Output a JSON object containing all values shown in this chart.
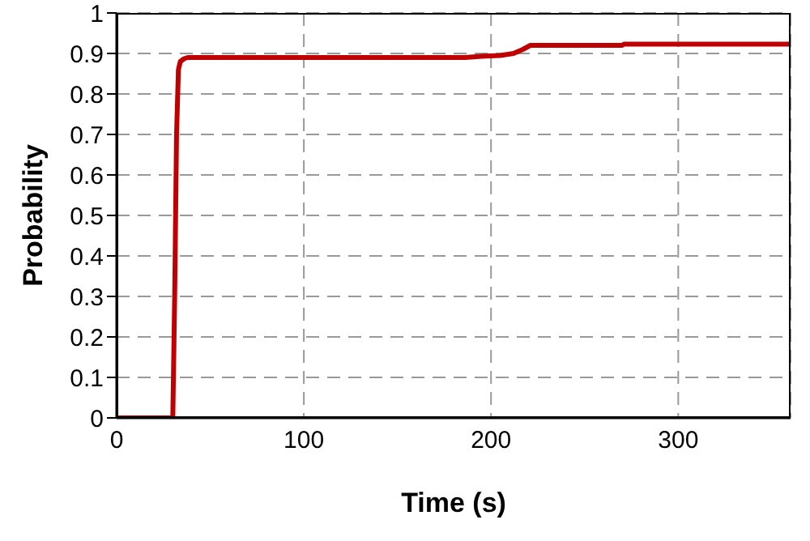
{
  "chart_data": {
    "type": "line",
    "xlabel": "Time (s)",
    "ylabel": "Probability",
    "x": [
      0,
      30,
      31,
      32,
      33,
      34,
      36,
      38,
      100,
      186,
      195,
      205,
      212,
      217,
      221,
      270,
      271,
      360
    ],
    "series": [
      {
        "color": "#c00000",
        "values": [
          0,
          0,
          0.3,
          0.7,
          0.86,
          0.88,
          0.887,
          0.89,
          0.89,
          0.89,
          0.893,
          0.895,
          0.9,
          0.91,
          0.92,
          0.92,
          0.923,
          0.923
        ]
      }
    ],
    "xlim": [
      0,
      360
    ],
    "xticks": [
      0,
      100,
      200,
      300
    ],
    "ylim": [
      0,
      1
    ],
    "yticks": [
      0,
      0.1,
      0.2,
      0.3,
      0.4,
      0.5,
      0.6,
      0.7,
      0.8,
      0.9,
      1
    ],
    "grid": true,
    "line_style": "solid",
    "marker": "none"
  }
}
